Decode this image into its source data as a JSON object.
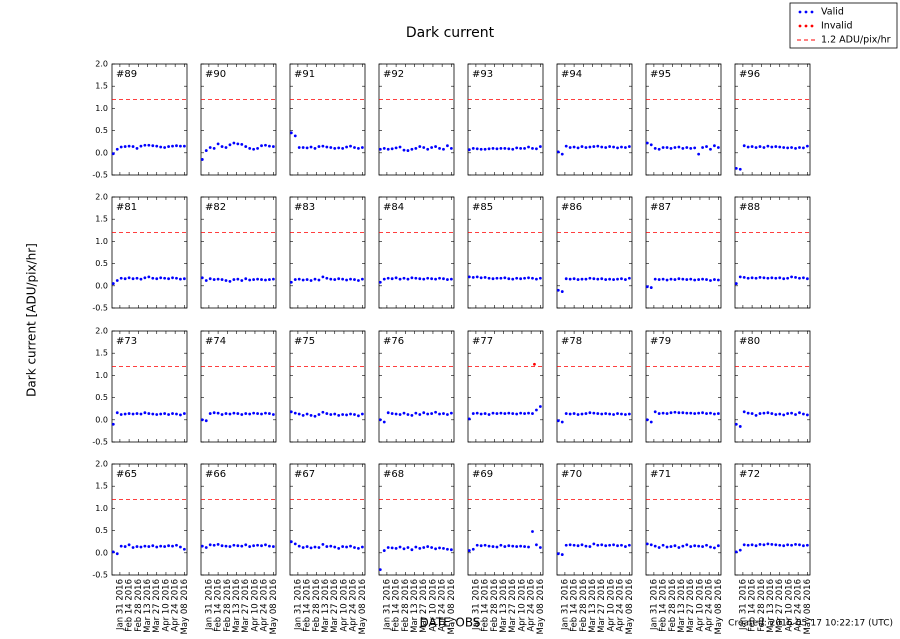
{
  "chart_data": {
    "type": "scatter",
    "title": "Dark current",
    "xlabel": "DATE-OBS",
    "ylabel": "Dark current [ADU/pix/hr]",
    "footer": "Created: 2016-05-17 10:22:17 (UTC)",
    "legend": [
      {
        "label": "Valid",
        "color": "#0000ff",
        "style": "dots"
      },
      {
        "label": "Invalid",
        "color": "#ff0000",
        "style": "dots"
      },
      {
        "label": "1.2 ADU/pix/hr",
        "color": "#ff0000",
        "style": "dashed"
      }
    ],
    "threshold": 1.2,
    "xlim": [
      "2016-01-19",
      "2016-05-12"
    ],
    "xticks": [
      {
        "value": "2016-01-31",
        "label": "Jan 31 2016"
      },
      {
        "value": "2016-02-14",
        "label": "Feb 14 2016"
      },
      {
        "value": "2016-02-28",
        "label": "Feb 28 2016"
      },
      {
        "value": "2016-03-13",
        "label": "Mar 13 2016"
      },
      {
        "value": "2016-03-27",
        "label": "Mar 27 2016"
      },
      {
        "value": "2016-04-10",
        "label": "Apr 10 2016"
      },
      {
        "value": "2016-04-24",
        "label": "Apr 24 2016"
      },
      {
        "value": "2016-05-08",
        "label": "May 08 2016"
      }
    ],
    "ylim": [
      -0.5,
      2
    ],
    "yticks": [
      {
        "value": 2,
        "label": "2.0"
      },
      {
        "value": 1.5,
        "label": "1.5"
      },
      {
        "value": 1,
        "label": "1.0"
      },
      {
        "value": 0.5,
        "label": "0.5"
      },
      {
        "value": 0,
        "label": "0.0"
      },
      {
        "value": -0.5,
        "label": "-0.5"
      }
    ],
    "x": [
      "2016-01-21",
      "2016-01-27",
      "2016-02-02",
      "2016-02-08",
      "2016-02-14",
      "2016-02-20",
      "2016-02-26",
      "2016-03-03",
      "2016-03-09",
      "2016-03-15",
      "2016-03-21",
      "2016-03-27",
      "2016-04-02",
      "2016-04-08",
      "2016-04-14",
      "2016-04-20",
      "2016-04-26",
      "2016-05-02",
      "2016-05-08"
    ],
    "panels": [
      {
        "title": "#89",
        "values": [
          -0.02,
          0.08,
          0.13,
          0.14,
          0.15,
          0.14,
          0.1,
          0.15,
          0.17,
          0.17,
          0.16,
          0.15,
          0.13,
          0.12,
          0.14,
          0.15,
          0.16,
          0.15,
          0.15
        ]
      },
      {
        "title": "#90",
        "values": [
          -0.15,
          0.05,
          0.12,
          0.1,
          0.2,
          0.14,
          0.12,
          0.18,
          0.22,
          0.2,
          0.19,
          0.14,
          0.1,
          0.08,
          0.1,
          0.16,
          0.17,
          0.15,
          0.14
        ]
      },
      {
        "title": "#91",
        "values": [
          0.45,
          0.38,
          0.12,
          0.12,
          0.11,
          0.13,
          0.1,
          0.14,
          0.15,
          0.13,
          0.12,
          0.1,
          0.11,
          0.1,
          0.13,
          0.15,
          0.12,
          0.1,
          0.12
        ]
      },
      {
        "title": "#92",
        "values": [
          0.08,
          0.1,
          0.08,
          0.09,
          0.11,
          0.13,
          0.06,
          0.05,
          0.08,
          0.1,
          0.14,
          0.12,
          0.08,
          0.12,
          0.14,
          0.1,
          0.08,
          0.16,
          0.1
        ]
      },
      {
        "title": "#93",
        "values": [
          0.07,
          0.1,
          0.09,
          0.08,
          0.08,
          0.09,
          0.1,
          0.09,
          0.1,
          0.1,
          0.09,
          0.08,
          0.11,
          0.1,
          0.1,
          0.13,
          0.1,
          0.09,
          0.14
        ]
      },
      {
        "title": "#94",
        "values": [
          0.02,
          -0.03,
          0.15,
          0.12,
          0.13,
          0.11,
          0.14,
          0.12,
          0.13,
          0.14,
          0.15,
          0.13,
          0.12,
          0.14,
          0.13,
          0.11,
          0.13,
          0.12,
          0.14
        ]
      },
      {
        "title": "#95",
        "values": [
          0.22,
          0.18,
          0.1,
          0.08,
          0.12,
          0.12,
          0.1,
          0.12,
          0.13,
          0.1,
          0.12,
          0.1,
          0.11,
          -0.03,
          0.12,
          0.14,
          0.08,
          0.16,
          0.12
        ]
      },
      {
        "title": "#96",
        "values": [
          -0.35,
          -0.37,
          0.16,
          0.13,
          0.14,
          0.12,
          0.14,
          0.12,
          0.15,
          0.13,
          0.14,
          0.13,
          0.12,
          0.11,
          0.12,
          0.1,
          0.12,
          0.11,
          0.15
        ]
      },
      {
        "title": "#81",
        "values": [
          0.05,
          0.12,
          0.17,
          0.16,
          0.18,
          0.16,
          0.17,
          0.15,
          0.18,
          0.2,
          0.17,
          0.16,
          0.18,
          0.17,
          0.16,
          0.18,
          0.17,
          0.15,
          0.16
        ]
      },
      {
        "title": "#82",
        "values": [
          0.18,
          0.12,
          0.16,
          0.14,
          0.15,
          0.14,
          0.12,
          0.1,
          0.14,
          0.15,
          0.12,
          0.16,
          0.13,
          0.14,
          0.15,
          0.14,
          0.13,
          0.14,
          0.15
        ]
      },
      {
        "title": "#83",
        "values": [
          0.08,
          0.14,
          0.15,
          0.13,
          0.14,
          0.12,
          0.15,
          0.13,
          0.2,
          0.17,
          0.15,
          0.14,
          0.16,
          0.15,
          0.13,
          0.15,
          0.14,
          0.12,
          0.15
        ]
      },
      {
        "title": "#84",
        "values": [
          0.08,
          0.15,
          0.17,
          0.16,
          0.18,
          0.15,
          0.17,
          0.15,
          0.18,
          0.17,
          0.16,
          0.15,
          0.17,
          0.16,
          0.15,
          0.17,
          0.16,
          0.14,
          0.15
        ]
      },
      {
        "title": "#85",
        "values": [
          0.2,
          0.19,
          0.2,
          0.18,
          0.19,
          0.17,
          0.16,
          0.17,
          0.17,
          0.18,
          0.16,
          0.15,
          0.17,
          0.16,
          0.17,
          0.18,
          0.17,
          0.15,
          0.17
        ]
      },
      {
        "title": "#86",
        "values": [
          -0.1,
          -0.13,
          0.16,
          0.15,
          0.16,
          0.14,
          0.15,
          0.15,
          0.17,
          0.16,
          0.15,
          0.16,
          0.14,
          0.15,
          0.14,
          0.15,
          0.16,
          0.14,
          0.17
        ]
      },
      {
        "title": "#87",
        "values": [
          -0.02,
          -0.04,
          0.15,
          0.14,
          0.15,
          0.13,
          0.15,
          0.14,
          0.16,
          0.15,
          0.14,
          0.15,
          0.13,
          0.14,
          0.15,
          0.14,
          0.12,
          0.14,
          0.13
        ]
      },
      {
        "title": "#88",
        "values": [
          0.05,
          0.2,
          0.19,
          0.17,
          0.18,
          0.17,
          0.19,
          0.18,
          0.17,
          0.18,
          0.17,
          0.18,
          0.16,
          0.17,
          0.2,
          0.19,
          0.17,
          0.18,
          0.16
        ]
      },
      {
        "title": "#73",
        "values": [
          -0.1,
          0.16,
          0.12,
          0.13,
          0.14,
          0.13,
          0.14,
          0.13,
          0.16,
          0.14,
          0.13,
          0.12,
          0.13,
          0.14,
          0.12,
          0.14,
          0.13,
          0.11,
          0.14
        ]
      },
      {
        "title": "#74",
        "values": [
          0,
          -0.02,
          0.14,
          0.16,
          0.15,
          0.12,
          0.14,
          0.13,
          0.15,
          0.14,
          0.12,
          0.14,
          0.13,
          0.15,
          0.14,
          0.13,
          0.15,
          0.14,
          0.12
        ]
      },
      {
        "title": "#75",
        "values": [
          0.18,
          0.15,
          0.13,
          0.1,
          0.13,
          0.1,
          0.08,
          0.12,
          0.17,
          0.14,
          0.12,
          0.13,
          0.1,
          0.12,
          0.11,
          0.13,
          0.12,
          0.09,
          0.13
        ]
      },
      {
        "title": "#76",
        "values": [
          0,
          -0.05,
          0.16,
          0.14,
          0.13,
          0.12,
          0.15,
          0.12,
          0.1,
          0.15,
          0.12,
          0.16,
          0.13,
          0.14,
          0.17,
          0.13,
          0.14,
          0.12,
          0.15
        ]
      },
      {
        "title": "#77",
        "values": [
          0.02,
          0.14,
          0.15,
          0.13,
          0.14,
          0.12,
          0.15,
          0.14,
          0.15,
          0.14,
          0.15,
          0.14,
          0.13,
          0.15,
          0.14,
          0.15,
          0.14,
          0.22,
          0.3
        ],
        "invalid_x": [
          "2016-04-29"
        ],
        "invalid_values": [
          1.25
        ]
      },
      {
        "title": "#78",
        "values": [
          -0.02,
          -0.05,
          0.14,
          0.13,
          0.14,
          0.12,
          0.13,
          0.14,
          0.16,
          0.15,
          0.14,
          0.13,
          0.14,
          0.13,
          0.12,
          0.14,
          0.13,
          0.12,
          0.13
        ]
      },
      {
        "title": "#79",
        "values": [
          0,
          -0.05,
          0.18,
          0.14,
          0.15,
          0.14,
          0.16,
          0.17,
          0.16,
          0.16,
          0.15,
          0.15,
          0.14,
          0.15,
          0.16,
          0.14,
          0.15,
          0.13,
          0.14
        ]
      },
      {
        "title": "#80",
        "values": [
          -0.1,
          -0.15,
          0.18,
          0.15,
          0.14,
          0.1,
          0.14,
          0.15,
          0.16,
          0.14,
          0.12,
          0.13,
          0.11,
          0.14,
          0.15,
          0.12,
          0.16,
          0.13,
          0.11
        ]
      },
      {
        "title": "#65",
        "values": [
          0.02,
          -0.02,
          0.15,
          0.14,
          0.18,
          0.12,
          0.14,
          0.13,
          0.15,
          0.14,
          0.16,
          0.13,
          0.15,
          0.14,
          0.16,
          0.15,
          0.17,
          0.13,
          0.08
        ]
      },
      {
        "title": "#66",
        "values": [
          0.15,
          0.12,
          0.18,
          0.17,
          0.19,
          0.16,
          0.15,
          0.14,
          0.17,
          0.16,
          0.15,
          0.18,
          0.14,
          0.16,
          0.17,
          0.16,
          0.18,
          0.15,
          0.14
        ]
      },
      {
        "title": "#67",
        "values": [
          0.25,
          0.2,
          0.15,
          0.12,
          0.14,
          0.11,
          0.13,
          0.12,
          0.19,
          0.14,
          0.15,
          0.13,
          0.1,
          0.14,
          0.13,
          0.15,
          0.12,
          0.1,
          0.13
        ]
      },
      {
        "title": "#68",
        "values": [
          -0.38,
          0.05,
          0.12,
          0.11,
          0.1,
          0.13,
          0.09,
          0.12,
          0.07,
          0.13,
          0.1,
          0.12,
          0.14,
          0.12,
          0.09,
          0.11,
          0.1,
          0.08,
          0.07
        ]
      },
      {
        "title": "#69",
        "values": [
          0.05,
          0.08,
          0.17,
          0.16,
          0.17,
          0.15,
          0.14,
          0.13,
          0.17,
          0.14,
          0.16,
          0.15,
          0.14,
          0.15,
          0.14,
          0.13,
          0.48,
          0.18,
          0.12
        ]
      },
      {
        "title": "#70",
        "values": [
          -0.02,
          -0.04,
          0.17,
          0.18,
          0.17,
          0.16,
          0.18,
          0.15,
          0.14,
          0.2,
          0.17,
          0.18,
          0.16,
          0.17,
          0.18,
          0.16,
          0.17,
          0.14,
          0.17
        ]
      },
      {
        "title": "#71",
        "values": [
          0.2,
          0.18,
          0.15,
          0.12,
          0.17,
          0.13,
          0.14,
          0.16,
          0.12,
          0.15,
          0.18,
          0.14,
          0.16,
          0.15,
          0.14,
          0.17,
          0.13,
          0.11,
          0.16
        ]
      },
      {
        "title": "#72",
        "values": [
          0.02,
          0.06,
          0.18,
          0.17,
          0.18,
          0.16,
          0.19,
          0.18,
          0.2,
          0.19,
          0.18,
          0.17,
          0.16,
          0.18,
          0.17,
          0.19,
          0.18,
          0.16,
          0.17
        ]
      }
    ]
  }
}
